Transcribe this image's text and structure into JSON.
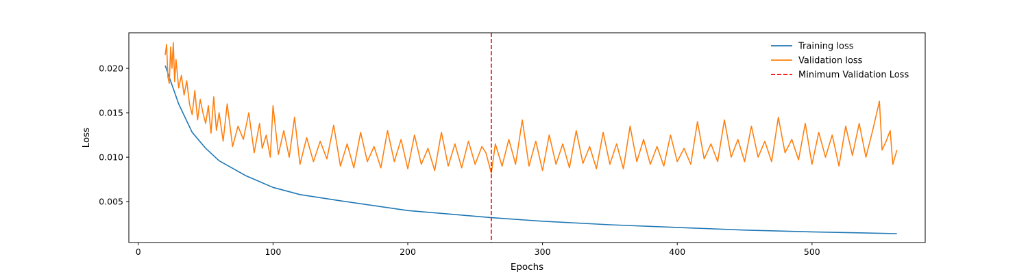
{
  "chart_data": {
    "type": "line",
    "title": "",
    "xlabel": "Epochs",
    "ylabel": "Loss",
    "xlim": [
      -7,
      584
    ],
    "ylim": [
      0.0004,
      0.024
    ],
    "x_ticks": [
      0,
      100,
      200,
      300,
      400,
      500
    ],
    "x_tick_labels": [
      "0",
      "100",
      "200",
      "300",
      "400",
      "500"
    ],
    "y_ticks": [
      0.005,
      0.01,
      0.015,
      0.02
    ],
    "y_tick_labels": [
      "0.005",
      "0.010",
      "0.015",
      "0.020"
    ],
    "grid": false,
    "legend_position": "top-right",
    "legend": [
      "Training loss",
      "Validation loss",
      "Minimum Validation Loss"
    ],
    "series": [
      {
        "name": "Training loss",
        "color": "#1f77b4",
        "x": [
          20,
          30,
          40,
          50,
          60,
          80,
          100,
          120,
          150,
          200,
          262,
          300,
          350,
          400,
          450,
          500,
          563
        ],
        "values": [
          0.0203,
          0.016,
          0.0128,
          0.011,
          0.0096,
          0.0079,
          0.0066,
          0.0058,
          0.0051,
          0.004,
          0.0032,
          0.0028,
          0.0024,
          0.0021,
          0.0018,
          0.0016,
          0.0014
        ]
      },
      {
        "name": "Validation loss",
        "color": "#ff7f0e",
        "x": [
          20,
          21,
          22,
          23,
          24,
          25,
          26,
          27,
          28,
          30,
          32,
          34,
          36,
          38,
          40,
          42,
          44,
          46,
          48,
          50,
          52,
          54,
          56,
          58,
          60,
          63,
          66,
          70,
          74,
          78,
          82,
          86,
          90,
          92,
          95,
          98,
          100,
          104,
          108,
          112,
          116,
          120,
          125,
          130,
          135,
          140,
          145,
          150,
          155,
          160,
          165,
          170,
          175,
          180,
          185,
          190,
          195,
          200,
          205,
          210,
          215,
          220,
          225,
          230,
          235,
          240,
          245,
          250,
          255,
          258,
          262,
          265,
          270,
          275,
          280,
          285,
          290,
          295,
          300,
          305,
          310,
          315,
          320,
          325,
          330,
          335,
          340,
          345,
          350,
          355,
          360,
          365,
          370,
          375,
          380,
          385,
          390,
          395,
          400,
          405,
          410,
          415,
          420,
          425,
          430,
          435,
          440,
          445,
          450,
          455,
          460,
          465,
          470,
          475,
          480,
          485,
          490,
          495,
          500,
          505,
          510,
          515,
          520,
          525,
          530,
          535,
          540,
          545,
          550,
          552,
          555,
          558,
          560,
          563
        ],
        "values": [
          0.0215,
          0.0227,
          0.019,
          0.0183,
          0.0224,
          0.02,
          0.0229,
          0.0185,
          0.021,
          0.0178,
          0.0192,
          0.017,
          0.0186,
          0.016,
          0.0148,
          0.0175,
          0.0142,
          0.0165,
          0.015,
          0.0138,
          0.0158,
          0.0127,
          0.0168,
          0.013,
          0.015,
          0.0118,
          0.016,
          0.0112,
          0.0135,
          0.012,
          0.015,
          0.0105,
          0.0138,
          0.011,
          0.0125,
          0.01,
          0.0158,
          0.0103,
          0.013,
          0.01,
          0.0145,
          0.0092,
          0.0122,
          0.0095,
          0.0118,
          0.0098,
          0.0136,
          0.009,
          0.0115,
          0.0088,
          0.0128,
          0.0095,
          0.0112,
          0.0088,
          0.013,
          0.0095,
          0.012,
          0.0087,
          0.0125,
          0.0092,
          0.011,
          0.0085,
          0.0128,
          0.009,
          0.0115,
          0.0088,
          0.0118,
          0.0092,
          0.0112,
          0.0105,
          0.0082,
          0.0115,
          0.009,
          0.012,
          0.0092,
          0.0142,
          0.009,
          0.0118,
          0.0085,
          0.0125,
          0.0092,
          0.0115,
          0.0088,
          0.013,
          0.0093,
          0.0112,
          0.0087,
          0.0128,
          0.0092,
          0.0115,
          0.0087,
          0.0135,
          0.0095,
          0.012,
          0.0092,
          0.0112,
          0.009,
          0.0125,
          0.0095,
          0.011,
          0.0092,
          0.014,
          0.0098,
          0.0115,
          0.0095,
          0.0142,
          0.01,
          0.012,
          0.0095,
          0.0135,
          0.01,
          0.0118,
          0.0095,
          0.0145,
          0.0105,
          0.012,
          0.0097,
          0.0138,
          0.0092,
          0.0128,
          0.01,
          0.0125,
          0.009,
          0.0135,
          0.0102,
          0.0138,
          0.01,
          0.013,
          0.0163,
          0.0108,
          0.0118,
          0.013,
          0.0092,
          0.0108
        ]
      }
    ],
    "vlines": [
      {
        "name": "Minimum Validation Loss",
        "x": 262,
        "color": "#ff0000",
        "style": "dashed"
      }
    ]
  }
}
